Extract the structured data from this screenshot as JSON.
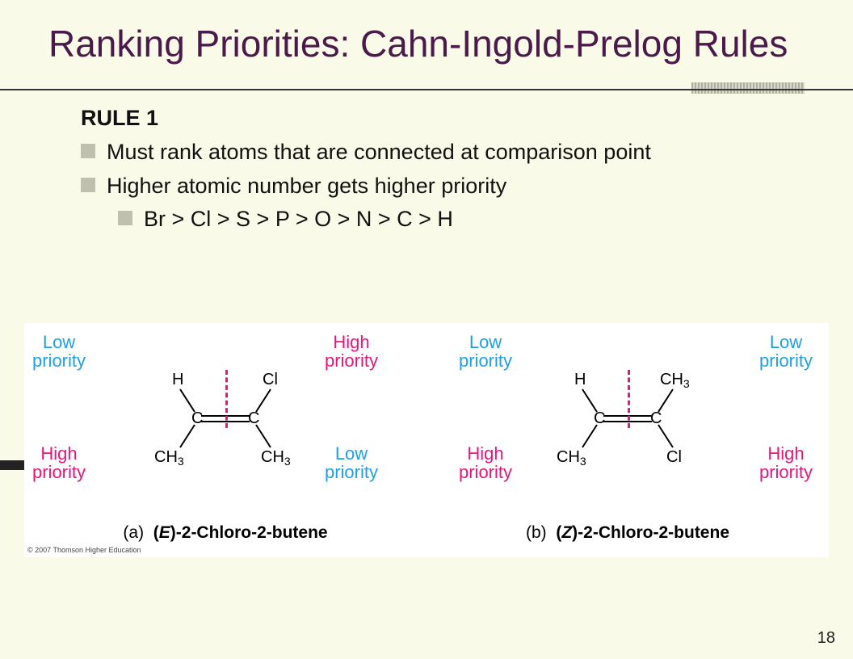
{
  "title": "Ranking Priorities: Cahn-Ingold-Prelog Rules",
  "rule_heading": "RULE 1",
  "bullets": {
    "b1": "Must rank atoms that are connected at comparison point",
    "b2": "Higher atomic number gets higher priority",
    "b3": "Br > Cl > S > P > O > N > C > H"
  },
  "labels": {
    "low": "Low\npriority",
    "high": "High\npriority"
  },
  "molecule_a": {
    "top_left": "H",
    "top_right": "Cl",
    "bottom_left": "CH3",
    "bottom_right": "CH3",
    "caption_prefix": "(a)",
    "isomer": "E",
    "name": "-2-Chloro-2-butene",
    "priorities": {
      "tl": "low",
      "tr": "high",
      "bl": "high",
      "br": "low"
    }
  },
  "molecule_b": {
    "top_left": "H",
    "top_right": "CH3",
    "bottom_left": "CH3",
    "bottom_right": "Cl",
    "caption_prefix": "(b)",
    "isomer": "Z",
    "name": "-2-Chloro-2-butene",
    "priorities": {
      "tl": "low",
      "tr": "low",
      "bl": "high",
      "br": "high"
    }
  },
  "copyright": "© 2007 Thomson Higher Education",
  "page_number": "18",
  "colors": {
    "bg": "#fafae8",
    "title": "#4a1a4a",
    "low": "#1ea0e8",
    "high": "#e8157a",
    "bullet_square": "#c0c0b0"
  }
}
